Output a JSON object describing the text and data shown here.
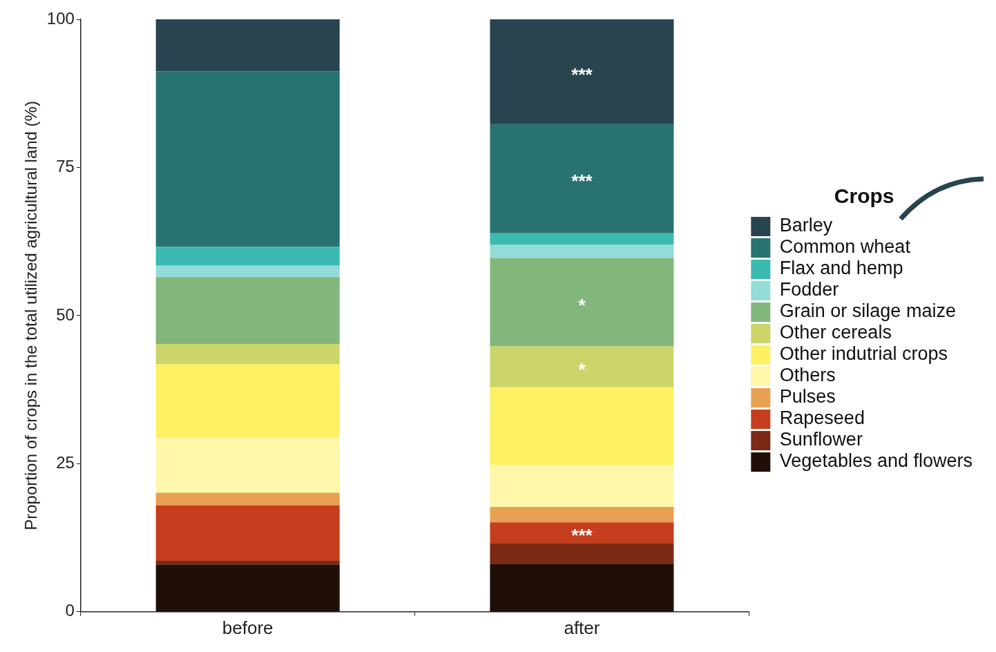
{
  "chart_data": {
    "type": "bar",
    "stacked": true,
    "ylabel": "Proportion of crops in the total utilized agricultural land (%)",
    "legend_title": "Crops",
    "legend": "right",
    "grid": false,
    "categories": [
      "before",
      "after"
    ],
    "ylim": [
      0,
      100
    ],
    "yticks": [
      0,
      25,
      50,
      75,
      100
    ],
    "series": [
      {
        "name": "Vegetables and flowers",
        "color": "#1f0f08",
        "values": [
          8.0,
          8.1
        ]
      },
      {
        "name": "Sunflower",
        "color": "#7c2916",
        "values": [
          0.6,
          3.5
        ]
      },
      {
        "name": "Rapeseed",
        "color": "#c63e1d",
        "values": [
          9.4,
          3.5
        ]
      },
      {
        "name": "Pulses",
        "color": "#e8a152",
        "values": [
          2.1,
          2.6
        ]
      },
      {
        "name": "Others",
        "color": "#fef6a8",
        "values": [
          9.2,
          7.1
        ]
      },
      {
        "name": "Other indutrial crops",
        "color": "#fdf063",
        "values": [
          12.5,
          13.1
        ]
      },
      {
        "name": "Other cereals",
        "color": "#ccd56a",
        "values": [
          3.4,
          6.9
        ]
      },
      {
        "name": "Grain or silage maize",
        "color": "#82b77b",
        "values": [
          11.3,
          14.9
        ]
      },
      {
        "name": "Fodder",
        "color": "#93dcd8",
        "values": [
          1.9,
          2.3
        ]
      },
      {
        "name": "Flax and hemp",
        "color": "#3bbab2",
        "values": [
          3.2,
          1.9
        ]
      },
      {
        "name": "Common wheat",
        "color": "#287270",
        "values": [
          29.6,
          18.5
        ]
      },
      {
        "name": "Barley",
        "color": "#27444f",
        "values": [
          8.8,
          17.6
        ]
      }
    ],
    "annotations": [
      {
        "text": "***",
        "x": "after",
        "y": 100
      },
      {
        "text": "***",
        "x": "after",
        "y": 82.4
      },
      {
        "text": "*",
        "x": "after",
        "y": 59.7
      },
      {
        "text": "*",
        "x": "after",
        "y": 44.8
      },
      {
        "text": "***",
        "x": "after",
        "y": 15.1
      }
    ]
  }
}
